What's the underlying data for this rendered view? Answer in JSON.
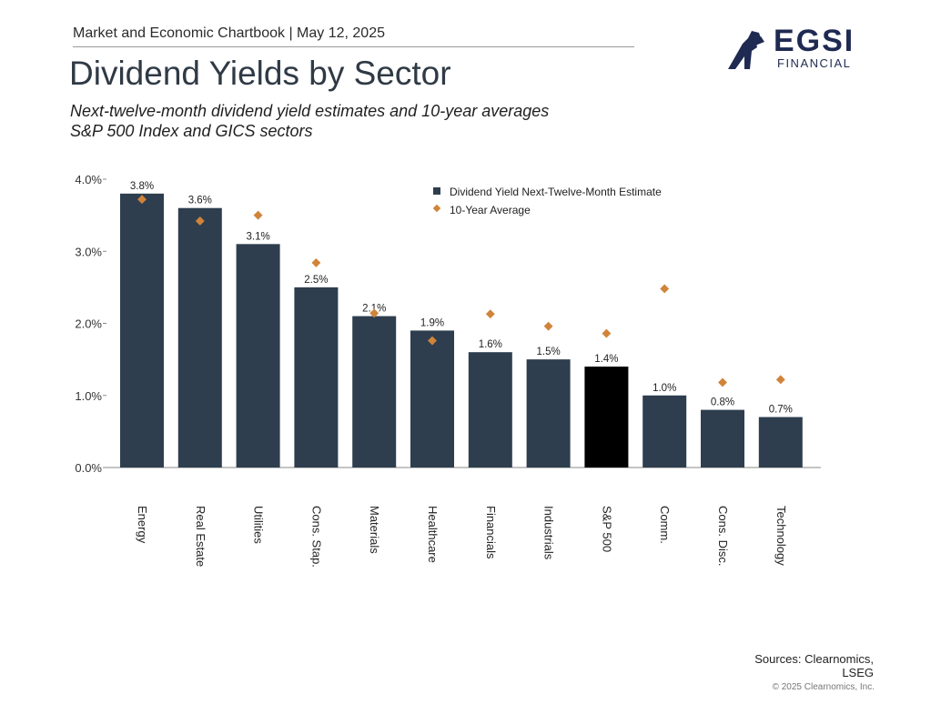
{
  "header": {
    "chartbook": "Market and Economic Chartbook | May 12, 2025",
    "title": "Dividend Yields by Sector",
    "subtitle_line1": "Next-twelve-month dividend yield estimates and 10-year averages",
    "subtitle_line2": "S&P 500 Index and GICS sectors"
  },
  "logo": {
    "main": "EGSI",
    "sub": "FINANCIAL",
    "icon": "figure-emblem-icon"
  },
  "colors": {
    "bar": "#2e3e4e",
    "highlight_bar": "#000000",
    "diamond": "#d0843a",
    "title": "#2f3a45"
  },
  "chart_data": {
    "type": "bar",
    "categories": [
      "Energy",
      "Real Estate",
      "Utilities",
      "Cons. Stap.",
      "Materials",
      "Healthcare",
      "Financials",
      "Industrials",
      "S&P 500",
      "Comm.",
      "Cons. Disc.",
      "Technology"
    ],
    "series": [
      {
        "name": "Dividend Yield Next-Twelve-Month Estimate",
        "values": [
          3.8,
          3.6,
          3.1,
          2.5,
          2.1,
          1.9,
          1.6,
          1.5,
          1.4,
          1.0,
          0.8,
          0.7
        ]
      },
      {
        "name": "10-Year Average",
        "values": [
          3.72,
          3.42,
          3.5,
          2.84,
          2.14,
          1.76,
          2.13,
          1.96,
          1.86,
          2.48,
          1.18,
          1.22
        ]
      }
    ],
    "data_labels": [
      "3.8%",
      "3.6%",
      "3.1%",
      "2.5%",
      "2.1%",
      "1.9%",
      "1.6%",
      "1.5%",
      "1.4%",
      "1.0%",
      "0.8%",
      "0.7%"
    ],
    "highlight_category": "S&P 500",
    "yticks": [
      "0.0%",
      "1.0%",
      "2.0%",
      "3.0%",
      "4.0%"
    ],
    "ylim": [
      0,
      4.0
    ],
    "legend_position": "top-right",
    "grid": false
  },
  "footer": {
    "sources_line1": "Sources: Clearnomics,",
    "sources_line2": "LSEG",
    "copyright": "© 2025 Clearnomics, Inc."
  }
}
